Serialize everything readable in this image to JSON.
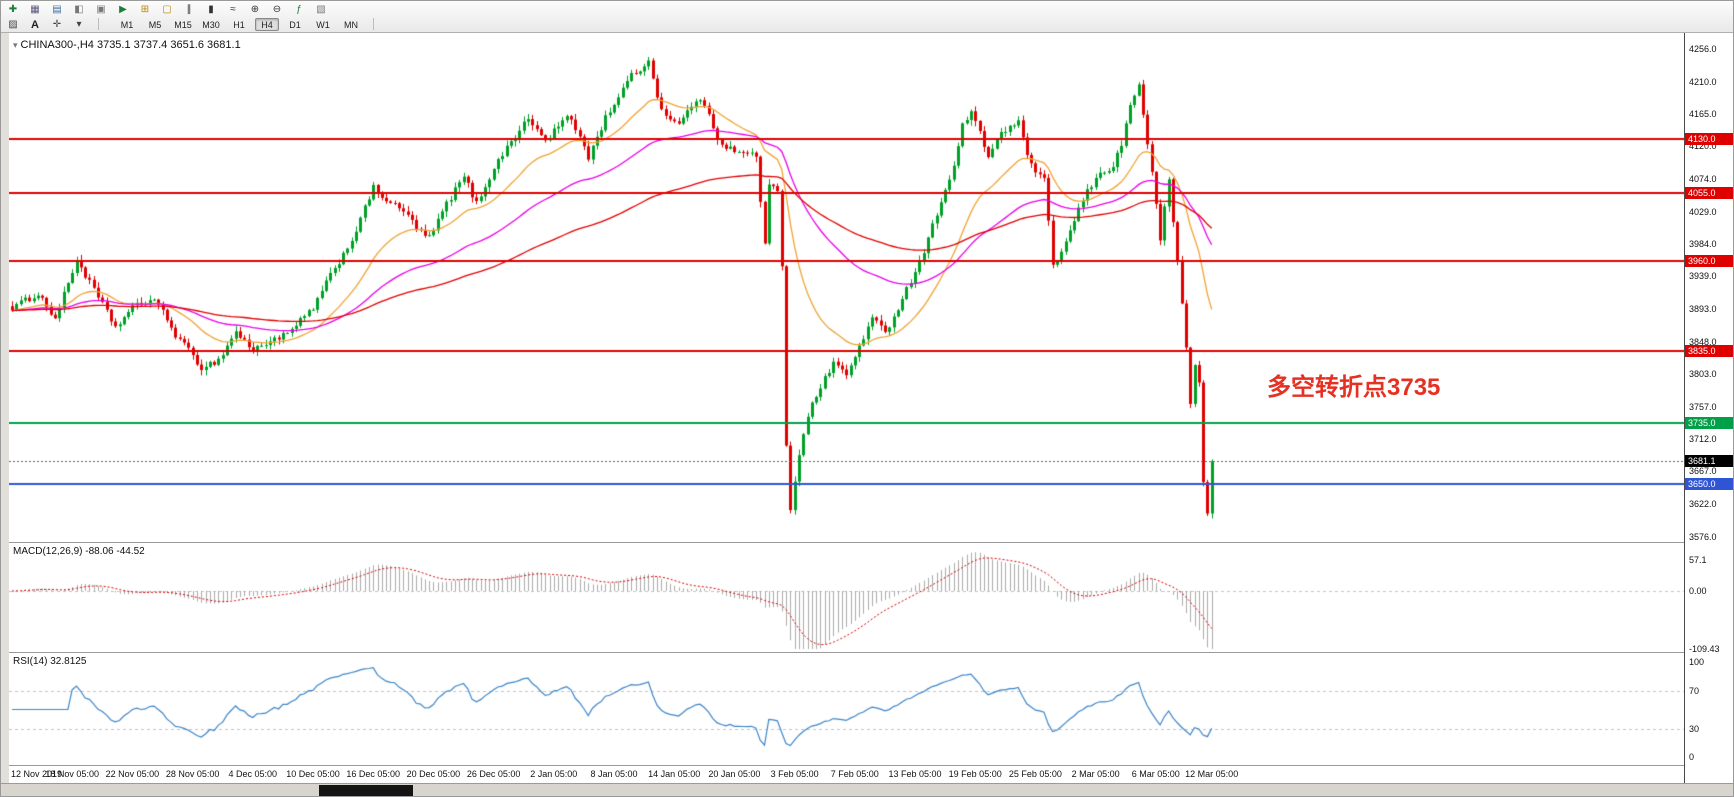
{
  "toolbar": {
    "row1_icons": [
      {
        "name": "new-order-icon",
        "glyph": "✚",
        "color": "#1a7f37"
      },
      {
        "name": "charts-grid-icon",
        "glyph": "▦",
        "color": "#555577"
      },
      {
        "name": "market-watch-icon",
        "glyph": "▤",
        "color": "#3a6ea5"
      },
      {
        "name": "navigator-icon",
        "glyph": "◧",
        "color": "#777777"
      },
      {
        "name": "terminal-icon",
        "glyph": "▣",
        "color": "#777777"
      },
      {
        "name": "autotrading-icon",
        "glyph": "▶",
        "color": "#1a7f37"
      },
      {
        "name": "new-chart-icon",
        "glyph": "⊞",
        "color": "#b8860b"
      },
      {
        "name": "profiles-icon",
        "glyph": "▢",
        "color": "#b8860b"
      },
      {
        "name": "bar-chart-icon",
        "glyph": "∥",
        "color": "#333333"
      },
      {
        "name": "candlestick-chart-icon",
        "glyph": "▮",
        "color": "#333333"
      },
      {
        "name": "line-chart-icon",
        "glyph": "≈",
        "color": "#333333"
      },
      {
        "name": "zoom-in-icon",
        "glyph": "⊕",
        "color": "#333333"
      },
      {
        "name": "zoom-out-icon",
        "glyph": "⊖",
        "color": "#333333"
      },
      {
        "name": "indicators-icon",
        "glyph": "ƒ",
        "color": "#1a7f37"
      },
      {
        "name": "templates-icon",
        "glyph": "▧",
        "color": "#777777"
      }
    ],
    "row2": {
      "hatch_icon": "▨",
      "text_tool_label": "A",
      "crosshair_icon": "✛",
      "dropdown_caret": "▾"
    },
    "timeframes": [
      "M1",
      "M5",
      "M15",
      "M30",
      "H1",
      "H4",
      "D1",
      "W1",
      "MN"
    ],
    "active_timeframe": "H4"
  },
  "chart": {
    "marker_glyph": "▾",
    "title_symbol": "CHINA300-,H4",
    "title_ohlc": "3735.1 3737.4 3651.6 3681.1",
    "annotation": "多空转折点3735",
    "y_axis_ticks": [
      "4256.0",
      "4210.0",
      "4165.0",
      "4120.0",
      "4074.0",
      "4029.0",
      "3984.0",
      "3939.0",
      "3893.0",
      "3848.0",
      "3803.0",
      "3757.0",
      "3712.0",
      "3667.0",
      "3622.0",
      "3576.0"
    ],
    "x_axis_labels": [
      "12 Nov 2019",
      "18 Nov 05:00",
      "22 Nov 05:00",
      "28 Nov 05:00",
      "4 Dec 05:00",
      "10 Dec 05:00",
      "16 Dec 05:00",
      "20 Dec 05:00",
      "26 Dec 05:00",
      "2 Jan 05:00",
      "8 Jan 05:00",
      "14 Jan 05:00",
      "20 Jan 05:00",
      "3 Feb 05:00",
      "7 Feb 05:00",
      "13 Feb 05:00",
      "19 Feb 05:00",
      "25 Feb 05:00",
      "2 Mar 05:00",
      "6 Mar 05:00",
      "12 Mar 05:00"
    ],
    "hlines": [
      {
        "price": 4130.0,
        "label": "4130.0",
        "color": "#df0000"
      },
      {
        "price": 4055.0,
        "label": "4055.0",
        "color": "#df0000"
      },
      {
        "price": 3960.0,
        "label": "3960.0",
        "color": "#df0000"
      },
      {
        "price": 3835.0,
        "label": "3835.0",
        "color": "#df0000"
      },
      {
        "price": 3735.0,
        "label": "3735.0",
        "color": "#00a048"
      },
      {
        "price": 3650.0,
        "label": "3650.0",
        "color": "#2f55d4"
      }
    ],
    "current_price": {
      "price": 3681.1,
      "label": "3681.1",
      "badge_bg": "#000000"
    },
    "colors": {
      "bull": "#00a028",
      "bear": "#df0000",
      "ma_fast": "#efa335",
      "ma_mid": "#e800e8",
      "ma_slow": "#e00000",
      "macd_hist": "#ababab",
      "macd_signal": "#d00000",
      "rsi": "#3e86c8",
      "annotation": "#e63022"
    }
  },
  "chart_data": {
    "type": "candlestick",
    "symbol": "CHINA300-",
    "timeframe": "H4",
    "visible_range": {
      "price_top": 4278,
      "price_bottom": 3570
    },
    "candles_total": 280,
    "close_waypoints": [
      [
        0,
        3895
      ],
      [
        6,
        3915
      ],
      [
        10,
        3880
      ],
      [
        15,
        3962
      ],
      [
        18,
        3930
      ],
      [
        24,
        3868
      ],
      [
        28,
        3895
      ],
      [
        33,
        3908
      ],
      [
        38,
        3858
      ],
      [
        44,
        3812
      ],
      [
        48,
        3822
      ],
      [
        52,
        3862
      ],
      [
        56,
        3835
      ],
      [
        60,
        3850
      ],
      [
        64,
        3858
      ],
      [
        70,
        3895
      ],
      [
        74,
        3940
      ],
      [
        79,
        3990
      ],
      [
        84,
        4062
      ],
      [
        88,
        4040
      ],
      [
        91,
        4030
      ],
      [
        95,
        4000
      ],
      [
        97,
        3992
      ],
      [
        101,
        4040
      ],
      [
        105,
        4078
      ],
      [
        108,
        4040
      ],
      [
        112,
        4090
      ],
      [
        116,
        4128
      ],
      [
        120,
        4158
      ],
      [
        124,
        4128
      ],
      [
        129,
        4162
      ],
      [
        132,
        4135
      ],
      [
        134,
        4105
      ],
      [
        138,
        4160
      ],
      [
        141,
        4190
      ],
      [
        144,
        4218
      ],
      [
        148,
        4238
      ],
      [
        151,
        4170
      ],
      [
        155,
        4150
      ],
      [
        159,
        4186
      ],
      [
        162,
        4168
      ],
      [
        164,
        4130
      ],
      [
        168,
        4112
      ],
      [
        173,
        4108
      ],
      [
        175,
        3983
      ],
      [
        176,
        4065
      ],
      [
        178,
        4057
      ],
      [
        179,
        3950
      ],
      [
        180,
        3705
      ],
      [
        181,
        3615
      ],
      [
        182,
        3655
      ],
      [
        183,
        3692
      ],
      [
        185,
        3747
      ],
      [
        188,
        3784
      ],
      [
        191,
        3820
      ],
      [
        194,
        3800
      ],
      [
        197,
        3842
      ],
      [
        200,
        3880
      ],
      [
        203,
        3860
      ],
      [
        207,
        3908
      ],
      [
        210,
        3946
      ],
      [
        213,
        3990
      ],
      [
        216,
        4046
      ],
      [
        219,
        4090
      ],
      [
        221,
        4150
      ],
      [
        223,
        4168
      ],
      [
        227,
        4106
      ],
      [
        230,
        4140
      ],
      [
        234,
        4152
      ],
      [
        237,
        4092
      ],
      [
        240,
        4072
      ],
      [
        242,
        3952
      ],
      [
        245,
        3986
      ],
      [
        249,
        4046
      ],
      [
        252,
        4076
      ],
      [
        256,
        4094
      ],
      [
        258,
        4122
      ],
      [
        260,
        4178
      ],
      [
        262,
        4208
      ],
      [
        264,
        4120
      ],
      [
        266,
        4042
      ],
      [
        267,
        3992
      ],
      [
        269,
        4072
      ],
      [
        270,
        4012
      ],
      [
        271,
        3962
      ],
      [
        272,
        3902
      ],
      [
        273,
        3838
      ],
      [
        274,
        3762
      ],
      [
        275,
        3814
      ],
      [
        276,
        3792
      ],
      [
        277,
        3652
      ],
      [
        278,
        3612
      ],
      [
        279,
        3681
      ]
    ],
    "moving_averages": [
      {
        "period": 21,
        "color_key": "ma_fast"
      },
      {
        "period": 55,
        "color_key": "ma_mid"
      },
      {
        "period": 120,
        "color_key": "ma_slow"
      }
    ]
  },
  "macd": {
    "label": "MACD(12,26,9)",
    "values": "-88.06 -44.52",
    "ticks": [
      "57.1",
      "0.00",
      "-109.43"
    ],
    "fast": 12,
    "slow": 26,
    "signal": 9
  },
  "rsi": {
    "label": "RSI(14)",
    "value": "32.8125",
    "ticks": [
      "100",
      "70",
      "30",
      "0"
    ],
    "period": 14,
    "levels": [
      70,
      30
    ]
  }
}
